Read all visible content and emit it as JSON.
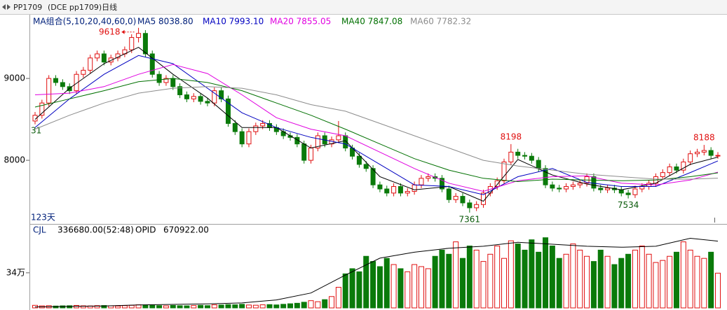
{
  "chart_data": {
    "type": "candlestick",
    "title": "PP1709",
    "subtitle": "(DCE pp1709)日线",
    "ma_title": "MA组合(5,10,20,40,60,0)",
    "up_color": "#e01010",
    "down_color": "#0a7a0a",
    "ylim": [
      7240,
      9770
    ],
    "yticks": [
      8000,
      9000
    ],
    "side_labels": [
      "31",
      "123天"
    ],
    "open": [
      8480,
      8550,
      8700,
      9000,
      8950,
      8900,
      8850,
      9050,
      9100,
      9250,
      9300,
      9200,
      9250,
      9300,
      9350,
      9500,
      9550,
      9300,
      9050,
      8950,
      9000,
      8900,
      8800,
      8750,
      8780,
      8720,
      8700,
      8850,
      8750,
      8450,
      8350,
      8200,
      8350,
      8420,
      8450,
      8400,
      8350,
      8300,
      8280,
      8200,
      8000,
      8150,
      8300,
      8200,
      8250,
      8300,
      8150,
      8050,
      7950,
      7900,
      7700,
      7650,
      7600,
      7680,
      7600,
      7620,
      7700,
      7780,
      7800,
      7780,
      7650,
      7520,
      7560,
      7480,
      7420,
      7460,
      7600,
      7680,
      7750,
      7980,
      8100,
      8060,
      8050,
      8000,
      7900,
      7700,
      7660,
      7650,
      7680,
      7700,
      7720,
      7800,
      7660,
      7640,
      7660,
      7640,
      7600,
      7580,
      7650,
      7680,
      7720,
      7800,
      7850,
      7920,
      7880,
      7980,
      8080,
      8100,
      8120,
      8060
    ],
    "high": [
      8590,
      8740,
      9040,
      9040,
      8990,
      8940,
      9090,
      9140,
      9290,
      9340,
      9340,
      9290,
      9340,
      9390,
      9540,
      9618,
      9590,
      9340,
      9090,
      9040,
      9040,
      8940,
      8840,
      8820,
      8820,
      8760,
      8890,
      8890,
      8790,
      8490,
      8390,
      8390,
      8460,
      8490,
      8490,
      8440,
      8390,
      8340,
      8320,
      8240,
      8190,
      8340,
      8340,
      8290,
      8480,
      8340,
      8190,
      8090,
      7990,
      7940,
      7740,
      7690,
      7720,
      7720,
      7660,
      7740,
      7820,
      7840,
      7840,
      7820,
      7690,
      7600,
      7600,
      7520,
      7500,
      7640,
      7720,
      7790,
      8020,
      8198,
      8140,
      8100,
      8090,
      8040,
      7940,
      7740,
      7700,
      7720,
      7740,
      7760,
      7840,
      7840,
      7700,
      7700,
      7700,
      7680,
      7640,
      7690,
      7720,
      7760,
      7840,
      7890,
      7960,
      7960,
      8020,
      8120,
      8140,
      8188,
      8160,
      8100
    ],
    "low": [
      8440,
      8510,
      8660,
      8910,
      8860,
      8810,
      8810,
      9010,
      9060,
      9210,
      9160,
      9160,
      9210,
      9260,
      9310,
      9440,
      9260,
      9010,
      8910,
      8910,
      8860,
      8760,
      8710,
      8710,
      8680,
      8660,
      8660,
      8710,
      8410,
      8310,
      8160,
      8160,
      8310,
      8380,
      8360,
      8310,
      8260,
      8240,
      8160,
      7960,
      7960,
      8110,
      8160,
      8160,
      8210,
      8110,
      8010,
      7910,
      7860,
      7660,
      7610,
      7560,
      7560,
      7560,
      7560,
      7580,
      7660,
      7740,
      7740,
      7610,
      7480,
      7480,
      7440,
      7361,
      7380,
      7420,
      7560,
      7640,
      7710,
      7940,
      8020,
      8010,
      7960,
      7860,
      7660,
      7620,
      7610,
      7610,
      7640,
      7660,
      7680,
      7620,
      7600,
      7600,
      7600,
      7560,
      7534,
      7540,
      7610,
      7640,
      7680,
      7760,
      7810,
      7840,
      7840,
      7940,
      8040,
      8060,
      8020,
      8020
    ],
    "close": [
      8550,
      8700,
      9000,
      8950,
      8900,
      8850,
      9050,
      9100,
      9250,
      9300,
      9200,
      9250,
      9300,
      9350,
      9500,
      9550,
      9300,
      9050,
      8950,
      9000,
      8900,
      8800,
      8750,
      8780,
      8720,
      8700,
      8850,
      8750,
      8450,
      8350,
      8200,
      8350,
      8420,
      8450,
      8400,
      8350,
      8300,
      8280,
      8200,
      8000,
      8150,
      8300,
      8200,
      8250,
      8300,
      8150,
      8050,
      7950,
      7900,
      7700,
      7650,
      7600,
      7680,
      7600,
      7620,
      7700,
      7780,
      7800,
      7780,
      7650,
      7520,
      7560,
      7480,
      7420,
      7460,
      7600,
      7680,
      7750,
      7980,
      8100,
      8060,
      8050,
      8000,
      7900,
      7700,
      7660,
      7650,
      7680,
      7700,
      7720,
      7800,
      7660,
      7640,
      7660,
      7640,
      7600,
      7580,
      7650,
      7680,
      7720,
      7800,
      7850,
      7920,
      7880,
      7980,
      8080,
      8100,
      8120,
      8060,
      8060
    ],
    "annotations": [
      {
        "x": 15,
        "value": 9618
      },
      {
        "x": 63,
        "value": 7361
      },
      {
        "x": 69,
        "value": 8198
      },
      {
        "x": 86,
        "value": 7534
      },
      {
        "x": 97,
        "value": 8188
      }
    ],
    "ma": [
      {
        "name": "MA5 8038.80",
        "color": "#000000",
        "x": [
          0,
          5,
          10,
          15,
          20,
          25,
          30,
          35,
          40,
          45,
          50,
          55,
          60,
          65,
          70,
          75,
          80,
          85,
          90,
          95,
          99
        ],
        "values": [
          8500,
          8880,
          9180,
          9380,
          9050,
          8760,
          8400,
          8400,
          8150,
          8240,
          7800,
          7640,
          7680,
          7500,
          8010,
          7820,
          7710,
          7640,
          7720,
          7950,
          8038.8
        ]
      },
      {
        "name": "MA10 7993.10",
        "color": "#0000c0",
        "x": [
          0,
          5,
          10,
          15,
          20,
          25,
          30,
          35,
          40,
          45,
          50,
          55,
          60,
          65,
          70,
          75,
          80,
          85,
          90,
          95,
          99
        ],
        "values": [
          8400,
          8750,
          9050,
          9280,
          9180,
          8880,
          8580,
          8400,
          8280,
          8200,
          7950,
          7700,
          7680,
          7580,
          7800,
          7900,
          7730,
          7680,
          7680,
          7850,
          7993.1
        ]
      },
      {
        "name": "MA20 7855.05",
        "color": "#e000e0",
        "x": [
          0,
          5,
          10,
          15,
          20,
          25,
          30,
          35,
          40,
          45,
          50,
          55,
          60,
          65,
          70,
          75,
          80,
          85,
          90,
          95,
          99
        ],
        "values": [
          8800,
          8820,
          8900,
          9050,
          9170,
          9060,
          8800,
          8520,
          8380,
          8300,
          8100,
          7900,
          7720,
          7620,
          7750,
          7800,
          7810,
          7720,
          7700,
          7760,
          7855.05
        ]
      },
      {
        "name": "MA40 7847.08",
        "color": "#007000",
        "x": [
          0,
          5,
          10,
          15,
          20,
          25,
          30,
          35,
          40,
          45,
          50,
          55,
          60,
          65,
          70,
          75,
          80,
          85,
          90,
          95,
          99
        ],
        "values": [
          8650,
          8750,
          8850,
          8960,
          9000,
          8950,
          8850,
          8700,
          8550,
          8380,
          8200,
          8020,
          7880,
          7780,
          7740,
          7770,
          7760,
          7750,
          7760,
          7800,
          7847.08
        ]
      },
      {
        "name": "MA60 7782.32",
        "color": "#8c8c8c",
        "x": [
          0,
          5,
          10,
          15,
          20,
          25,
          30,
          35,
          40,
          45,
          50,
          55,
          60,
          65,
          70,
          75,
          80,
          85,
          90,
          95,
          99
        ],
        "values": [
          8380,
          8550,
          8700,
          8820,
          8880,
          8900,
          8880,
          8800,
          8680,
          8600,
          8450,
          8300,
          8150,
          8000,
          7930,
          7880,
          7830,
          7800,
          7770,
          7770,
          7782.32
        ]
      }
    ],
    "volume": {
      "name": "CJL",
      "legend": "336680.00(52:48)",
      "ylim": [
        0,
        800000
      ],
      "yticks": [
        {
          "value": 340000,
          "label": "34万"
        }
      ],
      "values": [
        25000,
        20000,
        22000,
        18000,
        20000,
        21000,
        24000,
        20000,
        19000,
        22000,
        23000,
        20000,
        18000,
        22000,
        25000,
        30000,
        28000,
        26000,
        22000,
        20000,
        24000,
        21000,
        20000,
        23000,
        25000,
        22000,
        30000,
        28000,
        32000,
        30000,
        35000,
        28000,
        26000,
        30000,
        32000,
        29000,
        35000,
        40000,
        45000,
        55000,
        70000,
        60000,
        80000,
        110000,
        200000,
        330000,
        380000,
        350000,
        500000,
        450000,
        400000,
        480000,
        420000,
        380000,
        350000,
        420000,
        400000,
        380000,
        500000,
        560000,
        520000,
        640000,
        480000,
        600000,
        560000,
        450000,
        520000,
        600000,
        480000,
        650000,
        620000,
        560000,
        660000,
        540000,
        680000,
        600000,
        480000,
        520000,
        620000,
        560000,
        500000,
        450000,
        560000,
        500000,
        420000,
        480000,
        520000,
        560000,
        600000,
        520000,
        440000,
        460000,
        500000,
        540000,
        640000,
        560000,
        500000,
        480000,
        540000,
        336680
      ]
    },
    "opid": {
      "name": "OPID",
      "legend": "670922.00",
      "color": "#000000",
      "y2lim": [
        0,
        830000
      ],
      "x": [
        0,
        5,
        10,
        15,
        20,
        25,
        30,
        35,
        40,
        45,
        50,
        55,
        60,
        65,
        70,
        75,
        80,
        85,
        90,
        95,
        99
      ],
      "values": [
        10000,
        15000,
        20000,
        30000,
        35000,
        40000,
        50000,
        80000,
        150000,
        330000,
        500000,
        560000,
        600000,
        620000,
        660000,
        640000,
        620000,
        610000,
        620000,
        700000,
        670922
      ]
    }
  }
}
